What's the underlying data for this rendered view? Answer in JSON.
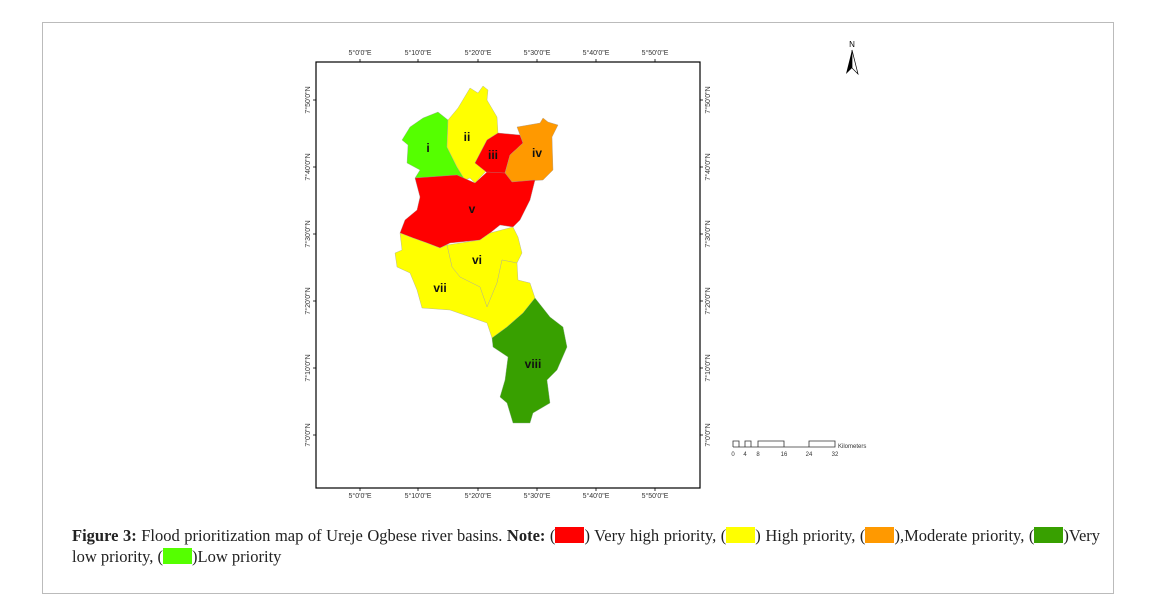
{
  "figure": {
    "label": "Figure 3:",
    "title": "Flood prioritization map of Ureje Ogbese river basins.",
    "note_label": "Note:",
    "legend": [
      {
        "color": "#ff0000",
        "text": "Very high priority,"
      },
      {
        "color": "#ffff00",
        "text": "High priority,"
      },
      {
        "color": "#ff9900",
        "text": ",Moderate priority,"
      },
      {
        "color": "#38a000",
        "text": "Very low priority,"
      },
      {
        "color": "#55ff00",
        "text": "Low priority"
      }
    ]
  },
  "map": {
    "longitude_labels": [
      "5°0'0\"E",
      "5°10'0\"E",
      "5°20'0\"E",
      "5°30'0\"E",
      "5°40'0\"E",
      "5°50'0\"E"
    ],
    "latitude_labels": [
      "7°50'0\"N",
      "7°40'0\"N",
      "7°30'0\"N",
      "7°20'0\"N",
      "7°10'0\"N",
      "7°0'0\"N"
    ],
    "north_label": "N",
    "scale_bar": {
      "ticks": [
        "0",
        "4",
        "8",
        "16",
        "24",
        "32"
      ],
      "unit": "Kilometers"
    },
    "basins": [
      {
        "id": "i",
        "priority": "Low priority",
        "color": "#55ff00"
      },
      {
        "id": "ii",
        "priority": "High priority",
        "color": "#ffff00"
      },
      {
        "id": "iii",
        "priority": "Very high priority",
        "color": "#ff0000"
      },
      {
        "id": "iv",
        "priority": "Moderate priority",
        "color": "#ff9900"
      },
      {
        "id": "v",
        "priority": "Very high priority",
        "color": "#ff0000"
      },
      {
        "id": "vi",
        "priority": "High priority",
        "color": "#ffff00"
      },
      {
        "id": "vii",
        "priority": "High priority",
        "color": "#ffff00"
      },
      {
        "id": "viii",
        "priority": "Very low priority",
        "color": "#38a000"
      }
    ]
  }
}
